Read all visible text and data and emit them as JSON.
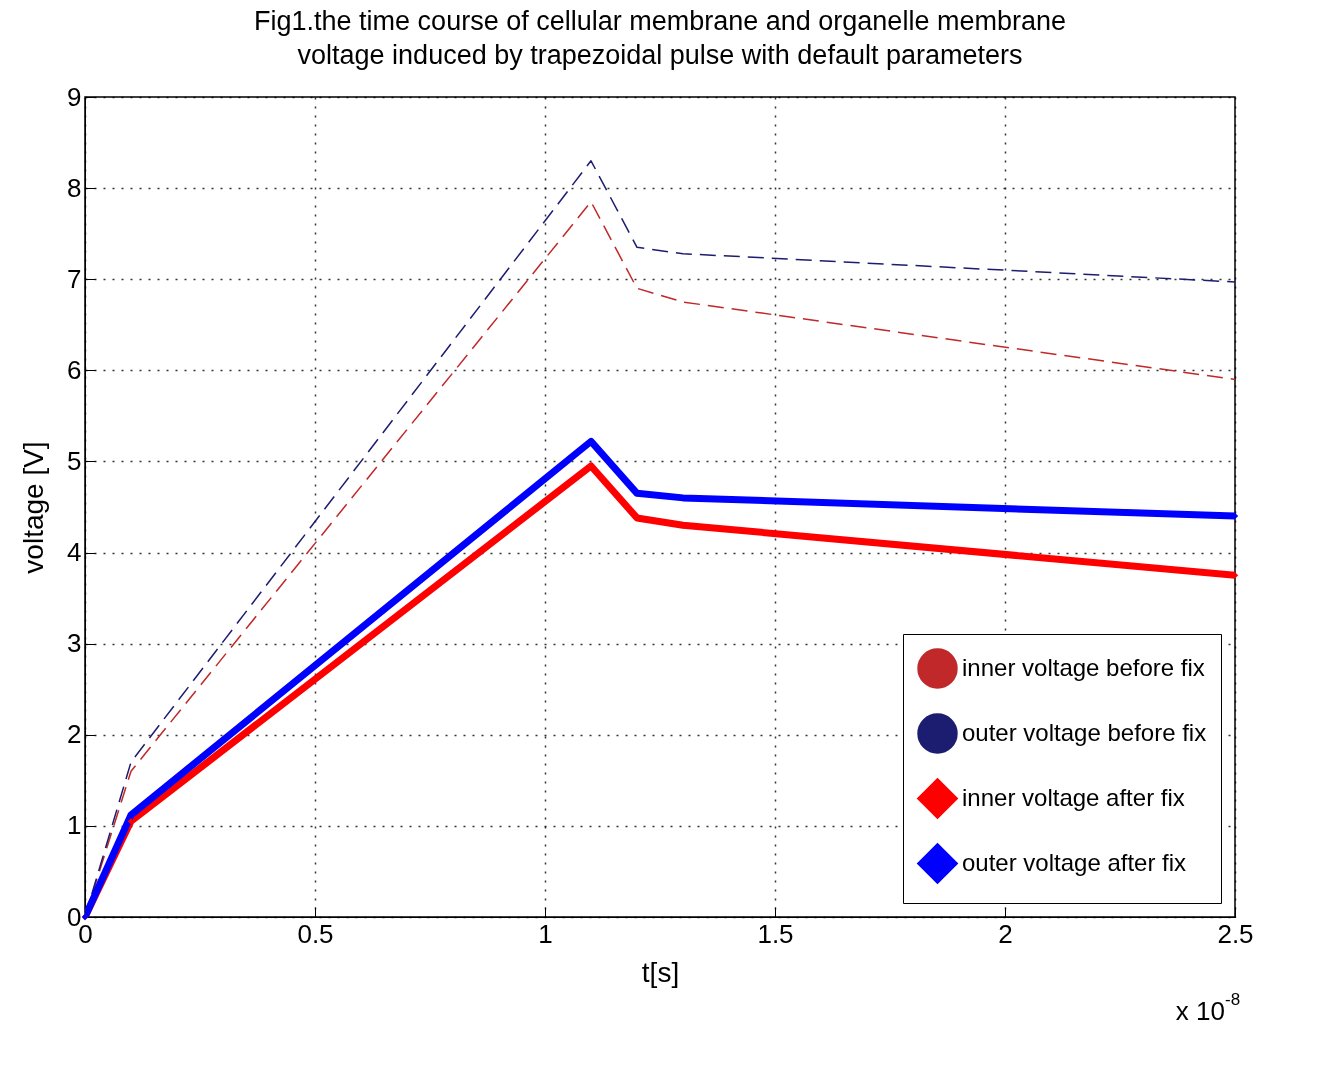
{
  "chart_data": {
    "type": "line",
    "title": "Fig1.the time course of cellular membrane and organelle membrane voltage induced by trapezoidal pulse with default parameters",
    "xlabel": "t[s]",
    "ylabel": "voltage [V]",
    "xlim": [
      0,
      2.5
    ],
    "xticks": [
      0,
      0.5,
      1,
      1.5,
      2,
      2.5
    ],
    "ylim": [
      0,
      9
    ],
    "yticks": [
      0,
      1,
      2,
      3,
      4,
      5,
      6,
      7,
      8,
      9
    ],
    "grid": true,
    "legend": "bottom right",
    "annotations": [
      "x 10$^{-8}$"
    ],
    "series": [
      {
        "name": "inner voltage before fix",
        "color": "#c0282a",
        "line_style": "dashed",
        "marker": "none",
        "x": [
          0,
          0.1,
          1.1,
          1.2,
          1.3,
          2.5
        ],
        "values": [
          0,
          1.6,
          7.85,
          6.9,
          6.75,
          5.9
        ]
      },
      {
        "name": "outer voltage before fix",
        "color": "#1c1c70",
        "line_style": "dashed",
        "marker": "none",
        "x": [
          0,
          0.1,
          1.1,
          1.2,
          1.3,
          2.5
        ],
        "values": [
          0,
          1.7,
          8.3,
          7.35,
          7.28,
          6.97
        ]
      },
      {
        "name": "inner voltage after fix",
        "color": "#ff0000",
        "line_style": "solid",
        "marker": "diamond",
        "x": [
          0,
          0.1,
          1.1,
          1.2,
          1.3,
          2.5
        ],
        "values": [
          0,
          1.05,
          4.95,
          4.38,
          4.3,
          3.75
        ]
      },
      {
        "name": "outer voltage after fix",
        "color": "#0000ff",
        "line_style": "solid",
        "marker": "diamond",
        "x": [
          0,
          0.1,
          1.1,
          1.2,
          1.3,
          2.5
        ],
        "values": [
          0,
          1.12,
          5.22,
          4.65,
          4.6,
          4.4
        ]
      }
    ]
  }
}
